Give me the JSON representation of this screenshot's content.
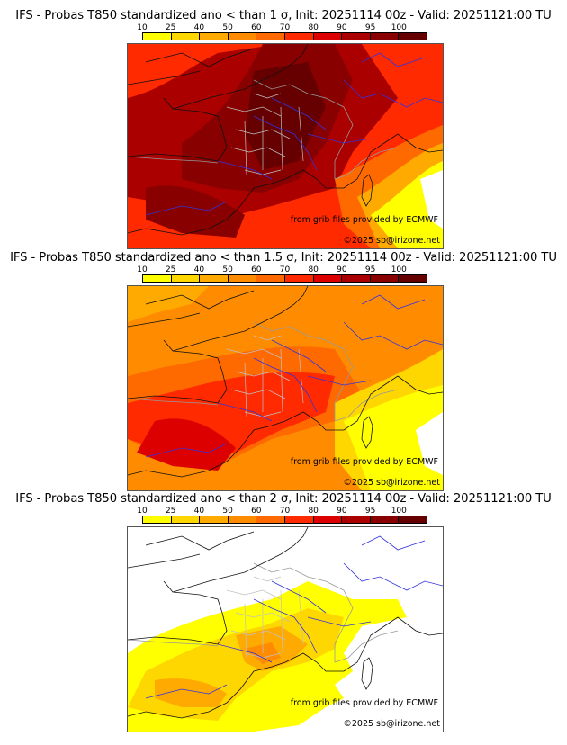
{
  "colorbar": {
    "ticks": [
      "10",
      "25",
      "40",
      "50",
      "60",
      "70",
      "80",
      "90",
      "95",
      "100"
    ],
    "colors": [
      "#ffff00",
      "#ffd700",
      "#ffaa00",
      "#ff8c00",
      "#ff6a00",
      "#ff2a00",
      "#dd0000",
      "#aa0000",
      "#880000",
      "#660000"
    ]
  },
  "panels": [
    {
      "title": "IFS - Probas T850  standardized ano < than 1 σ, Init: 20251114 00z - Valid: 20251121:00 TU",
      "threshold_sigma": "1",
      "credit_source": "from grib files provided by ECMWF",
      "credit_copyright": "©2025 sb@irizone.net"
    },
    {
      "title": "IFS - Probas T850  standardized ano < than 1.5 σ, Init: 20251114 00z - Valid: 20251121:00 TU",
      "threshold_sigma": "1.5",
      "credit_source": "from grib files provided by ECMWF",
      "credit_copyright": "©2025 sb@irizone.net"
    },
    {
      "title": "IFS - Probas T850  standardized ano < than 2 σ, Init: 20251114 00z - Valid: 20251121:00 TU",
      "threshold_sigma": "2",
      "credit_source": "from grib files provided by ECMWF",
      "credit_copyright": "©2025 sb@irizone.net"
    }
  ]
}
